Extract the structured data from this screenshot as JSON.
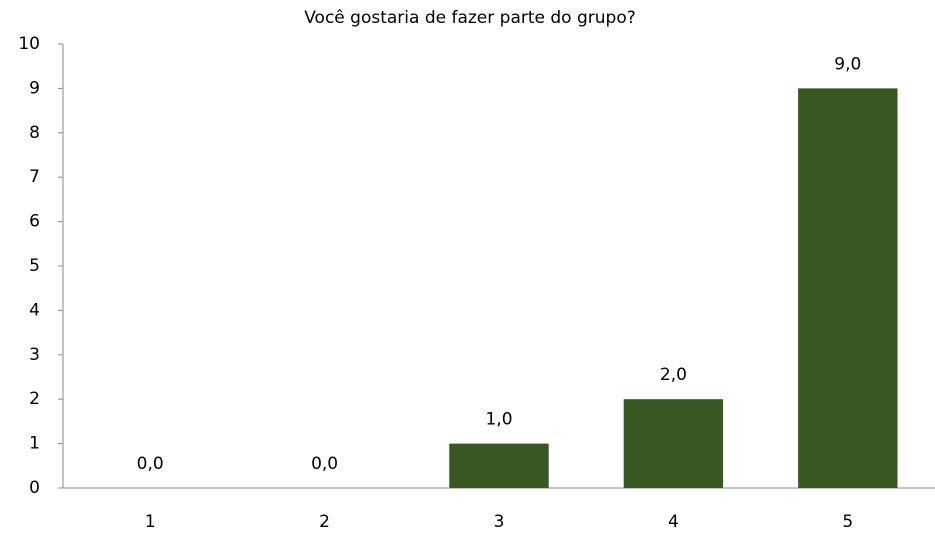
{
  "chart_data": {
    "type": "bar",
    "title": "Você gostaria de fazer parte do grupo?",
    "categories": [
      "1",
      "2",
      "3",
      "4",
      "5"
    ],
    "values": [
      0,
      0,
      1,
      2,
      9
    ],
    "value_labels": [
      "0,0",
      "0,0",
      "1,0",
      "2,0",
      "9,0"
    ],
    "color": "#385723",
    "ylim": [
      0,
      10
    ],
    "yticks": [
      0,
      1,
      2,
      3,
      4,
      5,
      6,
      7,
      8,
      9,
      10
    ],
    "grid": false
  }
}
